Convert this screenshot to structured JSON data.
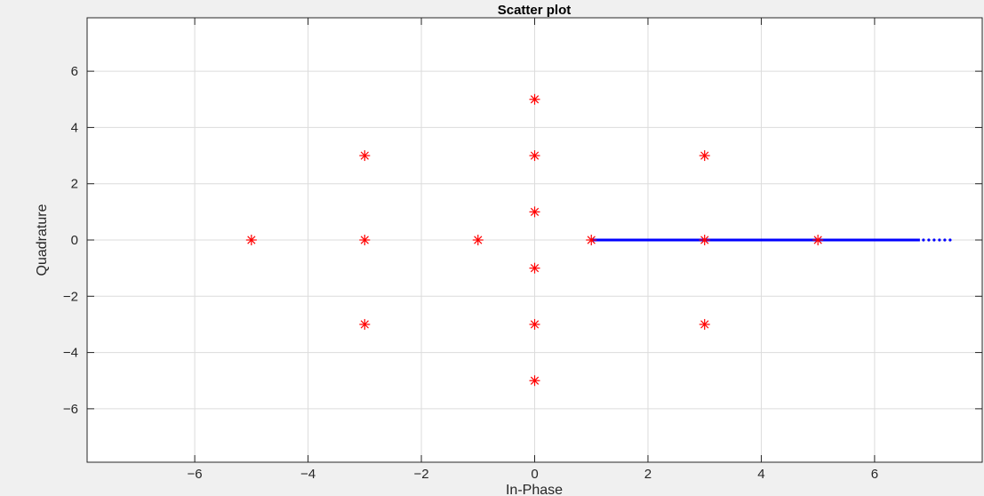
{
  "chart_data": {
    "type": "scatter",
    "title": "Scatter plot",
    "xlabel": "In-Phase",
    "ylabel": "Quadrature",
    "xlim": [
      -7.9,
      7.9
    ],
    "ylim": [
      -7.9,
      7.9
    ],
    "xticks": [
      -6,
      -4,
      -2,
      0,
      2,
      4,
      6
    ],
    "yticks": [
      -6,
      -4,
      -2,
      0,
      2,
      4,
      6
    ],
    "grid": true,
    "series": [
      {
        "marker": "asterisk",
        "color": "#ff0000",
        "points": [
          [
            0,
            5
          ],
          [
            0,
            3
          ],
          [
            0,
            1
          ],
          [
            0,
            -1
          ],
          [
            0,
            -3
          ],
          [
            0,
            -5
          ],
          [
            -3,
            3
          ],
          [
            -3,
            0
          ],
          [
            -3,
            -3
          ],
          [
            3,
            3
          ],
          [
            3,
            0
          ],
          [
            3,
            -3
          ],
          [
            -5,
            0
          ],
          [
            -1,
            0
          ],
          [
            1,
            0
          ],
          [
            5,
            0
          ]
        ]
      },
      {
        "marker": "dot",
        "color": "#0000ff",
        "x_range": [
          1.0,
          7.4
        ],
        "y": 0
      }
    ]
  }
}
